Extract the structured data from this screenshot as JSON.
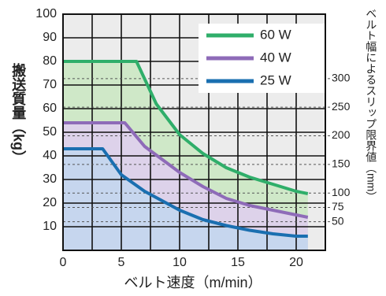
{
  "chart_data": {
    "type": "line",
    "x_label": "ベルト速度（m/min）",
    "y_label": "搬送質量（kg）",
    "y2_label": "ベルト幅によるスリップ限界値（mm）",
    "xlim": [
      0,
      22.5
    ],
    "xticks": [
      0,
      5,
      10,
      15,
      20
    ],
    "x_minor_ticks": [
      2.5,
      7.5,
      12.5,
      17.5,
      22.5
    ],
    "ylim": [
      0,
      100
    ],
    "yticks": [
      10,
      20,
      30,
      40,
      50,
      60,
      70,
      80,
      90,
      100
    ],
    "y2lim": [
      0,
      412.5
    ],
    "y2ticks": [
      50,
      75,
      100,
      150,
      200,
      250,
      300
    ],
    "grid": true,
    "legend": "upper right",
    "series": [
      {
        "name": "60 W",
        "color": "#2fae6a",
        "fill": "#cfe8c8",
        "x": [
          0,
          6.3,
          8,
          10,
          12,
          14,
          16,
          18,
          20,
          21
        ],
        "values": [
          80,
          80,
          62,
          49,
          41,
          35,
          31,
          28,
          25,
          24
        ]
      },
      {
        "name": "40 W",
        "color": "#8e6bb8",
        "fill": "#ddd2ea",
        "x": [
          0,
          5.3,
          7,
          10,
          12,
          14,
          16,
          18,
          20,
          21
        ],
        "values": [
          54,
          54,
          44,
          33,
          27,
          22,
          19,
          17,
          15,
          14
        ]
      },
      {
        "name": "25 W",
        "color": "#1a6fb0",
        "fill": "#c6d6ee",
        "x": [
          0,
          3.4,
          5,
          7,
          10,
          12,
          14,
          16,
          18,
          20,
          21
        ],
        "values": [
          43,
          43,
          32,
          25,
          17,
          13,
          10.5,
          8.5,
          7,
          6,
          6
        ]
      }
    ]
  }
}
